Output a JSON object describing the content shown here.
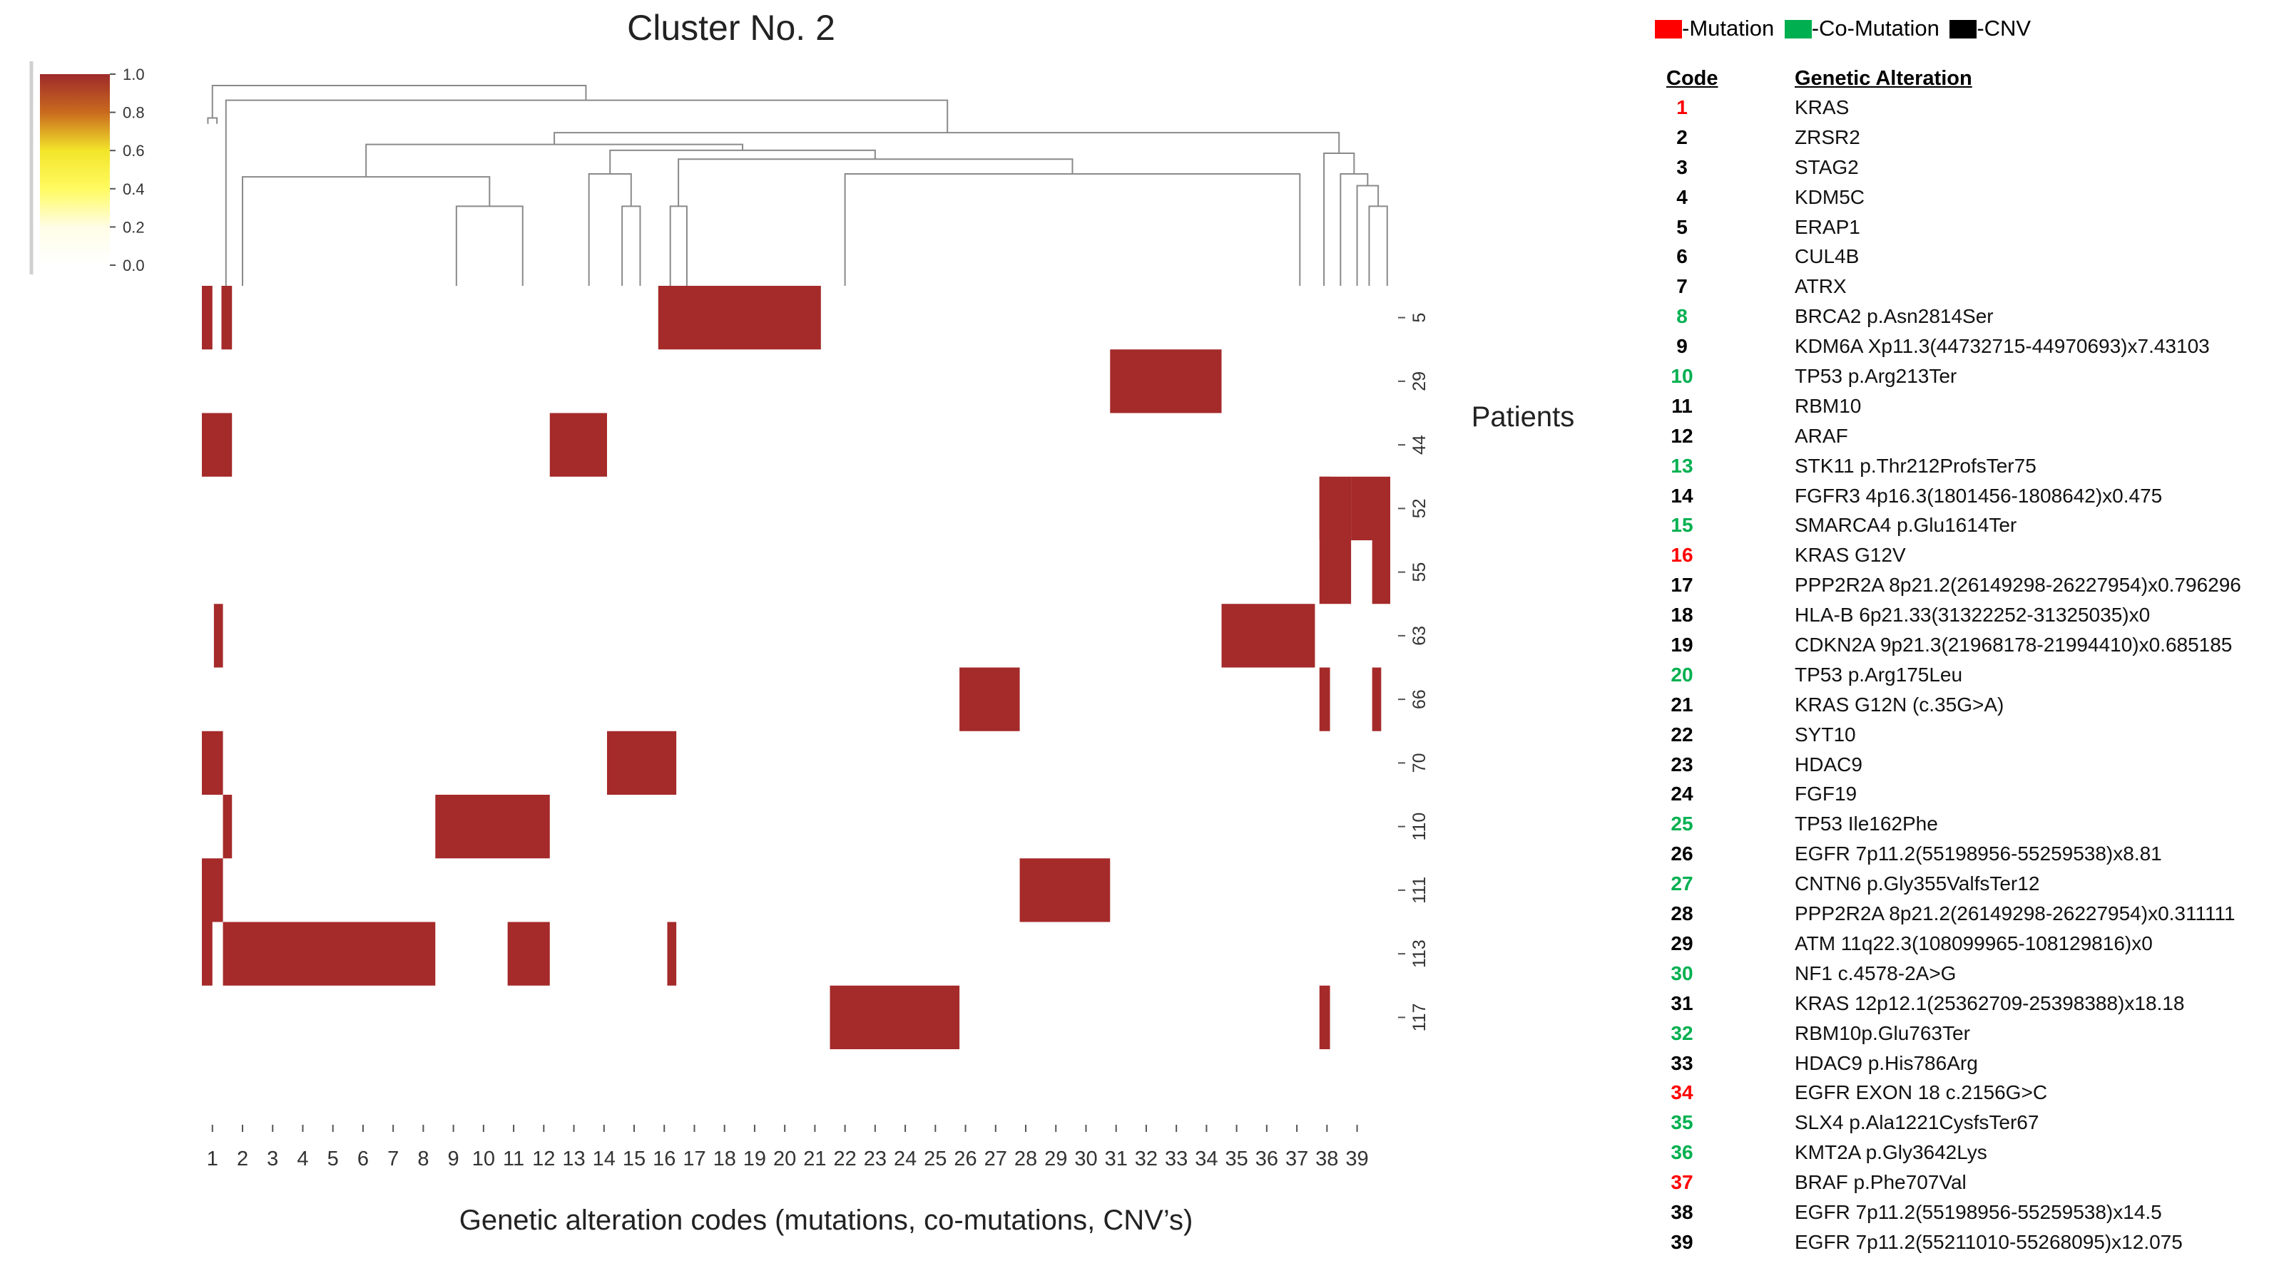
{
  "title": "Cluster No. 2",
  "colorbar": {
    "ticks": [
      "1.0",
      "0.8",
      "0.6",
      "0.4",
      "0.2",
      "0.0"
    ],
    "colors": [
      "#9e2a2b",
      "#c96a1e",
      "#f3e52a",
      "#fffb60",
      "#fffde6",
      "#ffffff"
    ]
  },
  "ylabel": "Patients",
  "xlabel": "Genetic alteration codes (mutations, co-mutations, CNV’s)",
  "legend": [
    {
      "label": "-Mutation",
      "color": "#ff0000"
    },
    {
      "label": "-Co-Mutation",
      "color": "#00b050"
    },
    {
      "label": "-CNV",
      "color": "#000000"
    }
  ],
  "table_headers": {
    "code": "Code",
    "alteration": "Genetic Alteration"
  },
  "code_colors": {
    "mutation": "#ff0000",
    "co_mutation": "#00b050",
    "cnv": "#000000"
  },
  "alterations": [
    {
      "code": "1",
      "name": "KRAS",
      "kind": "mutation"
    },
    {
      "code": "2",
      "name": "ZRSR2",
      "kind": "cnv"
    },
    {
      "code": "3",
      "name": "STAG2",
      "kind": "cnv"
    },
    {
      "code": "4",
      "name": "KDM5C",
      "kind": "cnv"
    },
    {
      "code": "5",
      "name": "ERAP1",
      "kind": "cnv"
    },
    {
      "code": "6",
      "name": "CUL4B",
      "kind": "cnv"
    },
    {
      "code": "7",
      "name": "ATRX",
      "kind": "cnv"
    },
    {
      "code": "8",
      "name": "BRCA2 p.Asn2814Ser",
      "kind": "co_mutation"
    },
    {
      "code": "9",
      "name": "KDM6A Xp11.3(44732715-44970693)x7.43103",
      "kind": "cnv"
    },
    {
      "code": "10",
      "name": "TP53 p.Arg213Ter",
      "kind": "co_mutation"
    },
    {
      "code": "11",
      "name": "RBM10",
      "kind": "cnv"
    },
    {
      "code": "12",
      "name": "ARAF",
      "kind": "cnv"
    },
    {
      "code": "13",
      "name": "STK11 p.Thr212ProfsTer75",
      "kind": "co_mutation"
    },
    {
      "code": "14",
      "name": "FGFR3 4p16.3(1801456-1808642)x0.475",
      "kind": "cnv"
    },
    {
      "code": "15",
      "name": "SMARCA4 p.Glu1614Ter",
      "kind": "co_mutation"
    },
    {
      "code": "16",
      "name": "KRAS G12V",
      "kind": "mutation"
    },
    {
      "code": "17",
      "name": "PPP2R2A 8p21.2(26149298-26227954)x0.796296",
      "kind": "cnv"
    },
    {
      "code": "18",
      "name": "HLA-B 6p21.33(31322252-31325035)x0",
      "kind": "cnv"
    },
    {
      "code": "19",
      "name": "CDKN2A 9p21.3(21968178-21994410)x0.685185",
      "kind": "cnv"
    },
    {
      "code": "20",
      "name": "TP53 p.Arg175Leu",
      "kind": "co_mutation"
    },
    {
      "code": "21",
      "name": " KRAS G12N (c.35G>A)",
      "kind": "cnv"
    },
    {
      "code": "22",
      "name": "SYT10",
      "kind": "cnv"
    },
    {
      "code": "23",
      "name": "HDAC9",
      "kind": "cnv"
    },
    {
      "code": "24",
      "name": "FGF19",
      "kind": "cnv"
    },
    {
      "code": "25",
      "name": "TP53 Ile162Phe",
      "kind": "co_mutation"
    },
    {
      "code": "26",
      "name": "EGFR 7p11.2(55198956-55259538)x8.81",
      "kind": "cnv"
    },
    {
      "code": "27",
      "name": "CNTN6 p.Gly355ValfsTer12",
      "kind": "co_mutation"
    },
    {
      "code": "28",
      "name": "PPP2R2A 8p21.2(26149298-26227954)x0.311111",
      "kind": "cnv"
    },
    {
      "code": "29",
      "name": "ATM 11q22.3(108099965-108129816)x0",
      "kind": "cnv"
    },
    {
      "code": "30",
      "name": "NF1 c.4578-2A>G",
      "kind": "co_mutation"
    },
    {
      "code": "31",
      "name": "KRAS 12p12.1(25362709-25398388)x18.18",
      "kind": "cnv"
    },
    {
      "code": "32",
      "name": "RBM10p.Glu763Ter",
      "kind": "co_mutation"
    },
    {
      "code": "33",
      "name": "HDAC9 p.His786Arg",
      "kind": "cnv"
    },
    {
      "code": "34",
      "name": "EGFR EXON 18 c.2156G>C",
      "kind": "mutation"
    },
    {
      "code": "35",
      "name": "SLX4 p.Ala1221CysfsTer67",
      "kind": "co_mutation"
    },
    {
      "code": "36",
      "name": "KMT2A p.Gly3642Lys",
      "kind": "co_mutation"
    },
    {
      "code": "37",
      "name": "BRAF  p.Phe707Val",
      "kind": "mutation"
    },
    {
      "code": "38",
      "name": "EGFR 7p11.2(55198956-55259538)x14.5",
      "kind": "cnv"
    },
    {
      "code": "39",
      "name": "EGFR 7p11.2(55211010-55268095)x12.075",
      "kind": "cnv"
    }
  ],
  "chart_data": {
    "type": "heatmap",
    "title": "Cluster No. 2",
    "xlabel": "Genetic alteration codes (mutations, co-mutations, CNV’s)",
    "ylabel": "Patients",
    "x_tick_labels": [
      "1",
      "2",
      "3",
      "4",
      "5",
      "6",
      "7",
      "8",
      "9",
      "10",
      "11",
      "12",
      "13",
      "14",
      "15",
      "16",
      "17",
      "18",
      "19",
      "20",
      "21",
      "22",
      "23",
      "24",
      "25",
      "26",
      "27",
      "28",
      "29",
      "30",
      "31",
      "32",
      "33",
      "34",
      "35",
      "36",
      "37",
      "38",
      "39"
    ],
    "x_extent": [
      0.15,
      39.6
    ],
    "y_tick_labels": [
      "5",
      "29",
      "44",
      "52",
      "55",
      "63",
      "66",
      "70",
      "110",
      "111",
      "113",
      "117"
    ],
    "value_range": [
      0.0,
      1.0
    ],
    "cells": [
      {
        "patient": "5",
        "ranges": [
          [
            0.15,
            0.5
          ],
          [
            0.8,
            1.15
          ],
          [
            15.3,
            20.7
          ]
        ],
        "value": 1
      },
      {
        "patient": "29",
        "ranges": [
          [
            30.3,
            34.0
          ]
        ],
        "value": 1
      },
      {
        "patient": "44",
        "ranges": [
          [
            0.15,
            1.15
          ],
          [
            11.7,
            13.6
          ]
        ],
        "value": 1
      },
      {
        "patient": "52",
        "ranges": [
          [
            37.25,
            37.6
          ],
          [
            38.3,
            39.6
          ]
        ],
        "value": 1
      },
      {
        "patient": "52",
        "ranges": [
          [
            37.25,
            38.3
          ]
        ],
        "value": 1,
        "patient_to": "55"
      },
      {
        "patient": "55",
        "ranges": [
          [
            39.0,
            39.6
          ]
        ],
        "value": 1
      },
      {
        "patient": "63",
        "ranges": [
          [
            0.55,
            0.85
          ],
          [
            34.0,
            37.1
          ]
        ],
        "value": 1
      },
      {
        "patient": "66",
        "ranges": [
          [
            25.3,
            27.3
          ],
          [
            37.25,
            37.6
          ],
          [
            39.0,
            39.3
          ]
        ],
        "value": 1
      },
      {
        "patient": "70",
        "ranges": [
          [
            0.15,
            0.85
          ],
          [
            13.6,
            15.9
          ]
        ],
        "value": 1
      },
      {
        "patient": "110",
        "ranges": [
          [
            0.85,
            1.15
          ],
          [
            7.9,
            11.7
          ]
        ],
        "value": 1
      },
      {
        "patient": "111",
        "ranges": [
          [
            0.15,
            0.85
          ],
          [
            27.3,
            30.3
          ]
        ],
        "value": 1
      },
      {
        "patient": "113",
        "ranges": [
          [
            0.15,
            0.5
          ],
          [
            0.85,
            7.9
          ],
          [
            10.3,
            11.7
          ],
          [
            15.6,
            15.9
          ]
        ],
        "value": 1
      },
      {
        "patient": "117",
        "ranges": [
          [
            21.0,
            25.3
          ],
          [
            37.25,
            37.6
          ]
        ],
        "value": 1
      }
    ],
    "dendrogram": [
      {
        "l": 0.35,
        "r": 0.65,
        "hl": 0.55,
        "hr": 0.55,
        "h": 0.57
      },
      {
        "l": 15.7,
        "r": 16.25,
        "hl": 0.0,
        "hr": 0.0,
        "h": 0.27
      },
      {
        "l": 14.1,
        "r": 14.7,
        "hl": 0.0,
        "hr": 0.0,
        "h": 0.27
      },
      {
        "l": 13.0,
        "r": 14.4,
        "hl": 0.0,
        "hr": 0.27,
        "h": 0.38
      },
      {
        "l": 8.6,
        "r": 10.8,
        "hl": 0.0,
        "hr": 0.0,
        "h": 0.27
      },
      {
        "l": 1.5,
        "r": 9.7,
        "hl": 0.0,
        "hr": 0.27,
        "h": 0.37
      },
      {
        "l": 21.5,
        "r": 36.6,
        "hl": 0.0,
        "hr": 0.0,
        "h": 0.38
      },
      {
        "l": 38.9,
        "r": 39.5,
        "hl": 0.0,
        "hr": 0.0,
        "h": 0.27
      },
      {
        "l": 38.5,
        "r": 39.2,
        "hl": 0.0,
        "hr": 0.27,
        "h": 0.34
      },
      {
        "l": 37.95,
        "r": 38.85,
        "hl": 0.0,
        "hr": 0.34,
        "h": 0.38
      },
      {
        "l": 37.4,
        "r": 38.4,
        "hl": 0.0,
        "hr": 0.38,
        "h": 0.45
      },
      {
        "l": 15.97,
        "r": 29.05,
        "hl": 0.27,
        "hr": 0.38,
        "h": 0.43
      },
      {
        "l": 13.7,
        "r": 22.5,
        "hl": 0.38,
        "hr": 0.43,
        "h": 0.46
      },
      {
        "l": 5.6,
        "r": 18.1,
        "hl": 0.37,
        "hr": 0.46,
        "h": 0.48
      },
      {
        "l": 11.85,
        "r": 37.9,
        "hl": 0.48,
        "hr": 0.45,
        "h": 0.52
      },
      {
        "l": 0.95,
        "r": 24.9,
        "hl": 0.0,
        "hr": 0.52,
        "h": 0.63
      },
      {
        "l": 0.5,
        "r": 12.9,
        "hl": 0.57,
        "hr": 0.63,
        "h": 0.68
      }
    ]
  }
}
